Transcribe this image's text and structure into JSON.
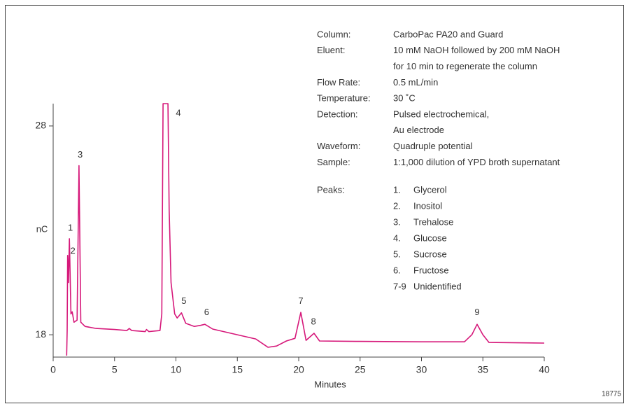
{
  "chart_data": {
    "type": "line",
    "y_label": "nC",
    "x_label": "Minutes",
    "figure_id": "18775",
    "color": "#d6187a",
    "xlim": [
      0,
      40
    ],
    "xticks": [
      0,
      5,
      10,
      15,
      20,
      25,
      30,
      35,
      40
    ],
    "ylim": [
      16.93,
      29.07
    ],
    "yticks": [
      18,
      28
    ],
    "x": [
      1.1,
      1.14,
      1.18,
      1.25,
      1.32,
      1.45,
      1.55,
      1.7,
      1.95,
      2.1,
      2.25,
      2.6,
      3.5,
      5,
      6,
      6.2,
      6.4,
      7.5,
      7.6,
      7.8,
      8.7,
      8.85,
      8.95,
      9.35,
      9.45,
      9.6,
      9.9,
      10.1,
      10.45,
      10.8,
      11.5,
      12,
      12.36,
      13,
      15,
      16.5,
      17.5,
      18.2,
      19,
      19.7,
      20.17,
      20.6,
      21.25,
      21.7,
      25,
      30,
      33.5,
      34.1,
      34.53,
      35,
      35.5,
      40
    ],
    "values": [
      17.0,
      18.2,
      21.8,
      20.5,
      22.6,
      19.0,
      19.1,
      18.6,
      18.7,
      26.1,
      18.6,
      18.4,
      18.3,
      18.25,
      18.2,
      18.3,
      18.2,
      18.15,
      18.25,
      18.15,
      18.2,
      19.0,
      29.07,
      29.07,
      24.0,
      20.5,
      19.0,
      18.8,
      19.05,
      18.55,
      18.4,
      18.45,
      18.5,
      18.27,
      18.0,
      17.8,
      17.4,
      17.46,
      17.7,
      17.83,
      19.07,
      17.73,
      18.07,
      17.7,
      17.68,
      17.66,
      17.66,
      18.0,
      18.5,
      18.0,
      17.63,
      17.6
    ],
    "peak_labels": [
      {
        "label": "1",
        "x": 1.4,
        "y": 23.1
      },
      {
        "label": "2",
        "x": 1.6,
        "y": 22.0
      },
      {
        "label": "3",
        "x": 2.2,
        "y": 26.6
      },
      {
        "label": "4",
        "x": 10.2,
        "y": 28.6
      },
      {
        "label": "5",
        "x": 10.65,
        "y": 19.6
      },
      {
        "label": "6",
        "x": 12.5,
        "y": 19.05
      },
      {
        "label": "7",
        "x": 20.17,
        "y": 19.6
      },
      {
        "label": "8",
        "x": 21.2,
        "y": 18.6
      },
      {
        "label": "9",
        "x": 34.53,
        "y": 19.05
      }
    ],
    "info": [
      {
        "key": "Column:",
        "lines": [
          "CarboPac PA20 and Guard"
        ]
      },
      {
        "key": "Eluent:",
        "lines": [
          "10 mM NaOH followed by 200 mM NaOH",
          "for 10 min to regenerate the column"
        ]
      },
      {
        "key": "Flow Rate:",
        "lines": [
          "0.5 mL/min"
        ]
      },
      {
        "key": "Temperature:",
        "lines": [
          "30 ˚C"
        ]
      },
      {
        "key": "Detection:",
        "lines": [
          "Pulsed electrochemical,",
          "Au electrode"
        ]
      },
      {
        "key": "Waveform:",
        "lines": [
          "Quadruple potential"
        ]
      },
      {
        "key": "Sample:",
        "lines": [
          "1:1,000 dilution of YPD broth supernatant"
        ]
      }
    ],
    "peaks_title": "Peaks:",
    "peaks": [
      {
        "num": "1.",
        "name": "Glycerol"
      },
      {
        "num": "2.",
        "name": "Inositol"
      },
      {
        "num": "3.",
        "name": "Trehalose"
      },
      {
        "num": "4.",
        "name": "Glucose"
      },
      {
        "num": "5.",
        "name": "Sucrose"
      },
      {
        "num": "6.",
        "name": "Fructose"
      },
      {
        "num": "7-9",
        "name": "Unidentified"
      }
    ]
  }
}
